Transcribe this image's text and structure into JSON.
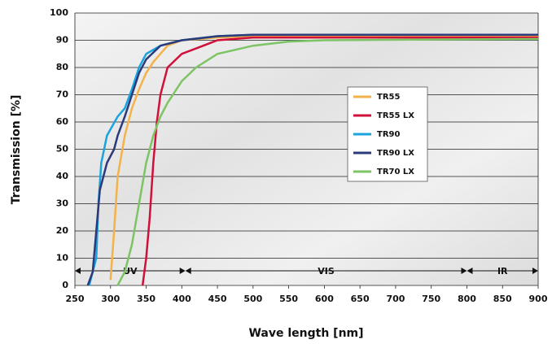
{
  "chart_data": {
    "type": "line",
    "xlabel": "Wave length [nm]",
    "ylabel": "Transmission [%]",
    "xlim": [
      250,
      900
    ],
    "xticks": [
      250,
      300,
      350,
      400,
      450,
      500,
      550,
      600,
      650,
      700,
      750,
      800,
      850,
      900
    ],
    "ylim": [
      0,
      100
    ],
    "yticks": [
      0,
      10,
      20,
      30,
      40,
      50,
      60,
      70,
      80,
      90,
      100
    ],
    "grid": true,
    "legend": "center",
    "regions": [
      {
        "label": "UV",
        "start": 250,
        "end": 405
      },
      {
        "label": "VIS",
        "start": 405,
        "end": 800
      },
      {
        "label": "IR",
        "start": 800,
        "end": 900
      }
    ],
    "series": [
      {
        "name": "TR55",
        "color": "#f4b24a",
        "x": [
          300,
          305,
          310,
          320,
          330,
          340,
          350,
          360,
          380,
          400,
          450,
          500,
          900
        ],
        "values": [
          2,
          20,
          40,
          55,
          65,
          72,
          78,
          82,
          88,
          90,
          91,
          91.5,
          91.5
        ]
      },
      {
        "name": "TR55 LX",
        "color": "#d0103a",
        "x": [
          345,
          350,
          355,
          360,
          365,
          370,
          380,
          400,
          420,
          450,
          500,
          900
        ],
        "values": [
          0,
          10,
          25,
          45,
          60,
          70,
          80,
          85,
          87,
          90,
          91,
          91
        ]
      },
      {
        "name": "TR90",
        "color": "#1aa3dc",
        "x": [
          270,
          280,
          283,
          287,
          295,
          310,
          320,
          330,
          340,
          350,
          370,
          400,
          450,
          500,
          900
        ],
        "values": [
          0,
          10,
          30,
          45,
          55,
          62,
          65,
          72,
          80,
          85,
          88,
          90,
          91.5,
          92,
          92
        ]
      },
      {
        "name": "TR90 LX",
        "color": "#2b3a7a",
        "x": [
          268,
          275,
          280,
          285,
          295,
          305,
          310,
          320,
          330,
          340,
          350,
          370,
          400,
          450,
          500,
          900
        ],
        "values": [
          0,
          5,
          20,
          35,
          45,
          50,
          55,
          62,
          70,
          78,
          83,
          88,
          90,
          91.5,
          92,
          92
        ]
      },
      {
        "name": "TR70 LX",
        "color": "#7cc464",
        "x": [
          310,
          320,
          330,
          340,
          350,
          360,
          370,
          380,
          400,
          420,
          450,
          500,
          550,
          600,
          900
        ],
        "values": [
          0,
          5,
          15,
          30,
          45,
          55,
          62,
          67,
          75,
          80,
          85,
          88,
          89.5,
          90,
          90.5
        ]
      }
    ]
  }
}
